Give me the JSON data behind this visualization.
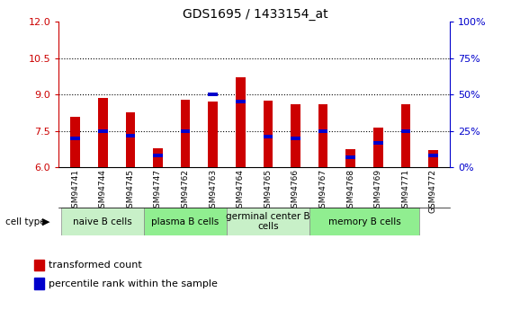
{
  "title": "GDS1695 / 1433154_at",
  "samples": [
    "GSM94741",
    "GSM94744",
    "GSM94745",
    "GSM94747",
    "GSM94762",
    "GSM94763",
    "GSM94764",
    "GSM94765",
    "GSM94766",
    "GSM94767",
    "GSM94768",
    "GSM94769",
    "GSM94771",
    "GSM94772"
  ],
  "transformed_counts": [
    8.1,
    8.85,
    8.25,
    6.8,
    8.8,
    8.7,
    9.7,
    8.75,
    8.6,
    8.6,
    6.75,
    7.65,
    8.6,
    6.7
  ],
  "percentile_ranks": [
    20,
    25,
    22,
    8,
    25,
    50,
    45,
    21,
    20,
    25,
    7,
    17,
    25,
    8
  ],
  "ymin": 6,
  "ymax": 12,
  "yticks": [
    6,
    7.5,
    9,
    10.5,
    12
  ],
  "right_yticks": [
    0,
    25,
    50,
    75,
    100
  ],
  "right_yticklabels": [
    "0%",
    "25%",
    "50%",
    "75%",
    "100%"
  ],
  "cell_groups": [
    {
      "label": "naive B cells",
      "start": 0,
      "end": 3,
      "color": "#c8f0c8"
    },
    {
      "label": "plasma B cells",
      "start": 3,
      "end": 6,
      "color": "#90ee90"
    },
    {
      "label": "germinal center B\ncells",
      "start": 6,
      "end": 9,
      "color": "#c8f0c8"
    },
    {
      "label": "memory B cells",
      "start": 9,
      "end": 13,
      "color": "#90ee90"
    }
  ],
  "bar_color": "#cc0000",
  "blue_color": "#0000cc",
  "bar_width": 0.35,
  "tick_color_left": "#cc0000",
  "tick_color_right": "#0000cc",
  "grid_lines": [
    7.5,
    9.0,
    10.5
  ]
}
